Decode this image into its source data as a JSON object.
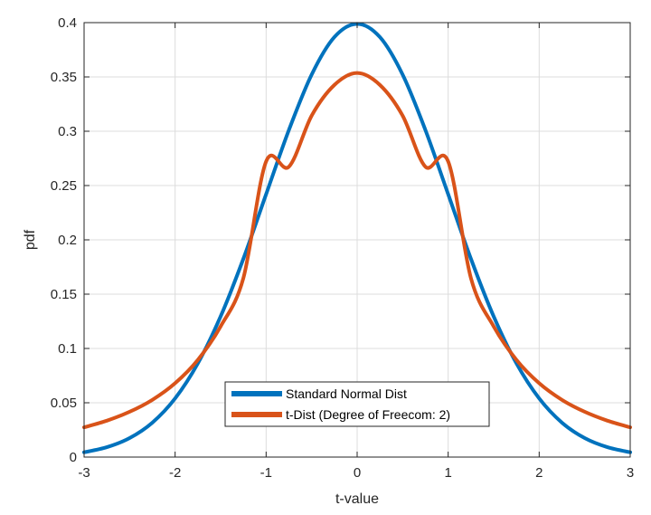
{
  "chart_data": {
    "type": "line",
    "title": "",
    "xlabel": "t-value",
    "ylabel": "pdf",
    "xlim": [
      -3,
      3
    ],
    "ylim": [
      0,
      0.4
    ],
    "xticks": [
      "-3",
      "-2",
      "-1",
      "0",
      "1",
      "2",
      "3"
    ],
    "yticks": [
      "0",
      "0.05",
      "0.1",
      "0.15",
      "0.2",
      "0.25",
      "0.3",
      "0.35",
      "0.4"
    ],
    "grid": true,
    "legend_position": "bottom-center",
    "x": [
      -3,
      -2.75,
      -2.5,
      -2.25,
      -2,
      -1.75,
      -1.5,
      -1.25,
      -1,
      -0.75,
      -0.5,
      -0.25,
      0,
      0.25,
      0.5,
      0.75,
      1,
      1.25,
      1.5,
      1.75,
      2,
      2.25,
      2.5,
      2.75,
      3
    ],
    "series": [
      {
        "name": "Standard Normal Dist",
        "color": "#0072BD",
        "values": [
          0.0044,
          0.0091,
          0.0175,
          0.0317,
          0.054,
          0.0863,
          0.1295,
          0.1826,
          0.242,
          0.3011,
          0.3521,
          0.3867,
          0.3989,
          0.3867,
          0.3521,
          0.3011,
          0.242,
          0.1826,
          0.1295,
          0.0863,
          0.054,
          0.0317,
          0.0175,
          0.0091,
          0.0044
        ]
      },
      {
        "name": "t-Dist (Degree of Freecom: 2)",
        "color": "#D95319",
        "values": [
          0.0274,
          0.0335,
          0.0417,
          0.0527,
          0.068,
          0.0895,
          0.1203,
          0.1648,
          0.2722,
          0.2673,
          0.3143,
          0.3426,
          0.3536,
          0.3426,
          0.3143,
          0.2673,
          0.2722,
          0.1648,
          0.1203,
          0.0895,
          0.068,
          0.0527,
          0.0417,
          0.0335,
          0.0274
        ]
      }
    ]
  }
}
